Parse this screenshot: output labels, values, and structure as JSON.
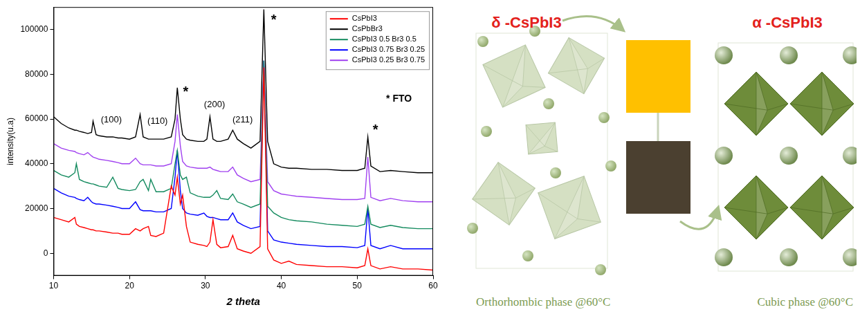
{
  "chart_data": {
    "type": "line",
    "x_label": "2 theta",
    "y_label": "intensity(u.a)",
    "xlim": [
      10,
      60
    ],
    "xticks": [
      10,
      20,
      30,
      40,
      50,
      60
    ],
    "ylim": [
      -10000,
      110000
    ],
    "yticks": [
      0,
      20000,
      40000,
      60000,
      80000,
      100000
    ],
    "grid": false,
    "legend": "upper right",
    "x": [
      10,
      11,
      12,
      12.8,
      13,
      13.4,
      14,
      14.5,
      15,
      15.2,
      15.6,
      16,
      17,
      17.8,
      18.5,
      19,
      20,
      20.8,
      21.4,
      21.8,
      22.5,
      22.8,
      23.5,
      24.5,
      25.5,
      26,
      26.3,
      26.7,
      27,
      27.5,
      28,
      29,
      29.8,
      30.2,
      30.6,
      31,
      31.5,
      32,
      33,
      33.6,
      34.2,
      35,
      36,
      37.2,
      37.7,
      38.2,
      39,
      40,
      41,
      42,
      44,
      46,
      48,
      50,
      51,
      51.4,
      51.8,
      53,
      54.4,
      56,
      58,
      60
    ],
    "series": [
      {
        "name": "CsPbI3",
        "color": "#ff0000",
        "values": [
          16000,
          15000,
          14000,
          16000,
          13000,
          12000,
          11500,
          11000,
          10500,
          10500,
          10000,
          10000,
          9500,
          9000,
          9000,
          8500,
          8500,
          11000,
          10000,
          11000,
          12000,
          8000,
          7500,
          9000,
          30000,
          26000,
          34000,
          22000,
          26000,
          12000,
          5000,
          4000,
          3500,
          3000,
          5000,
          15000,
          4000,
          2500,
          3000,
          8000,
          2000,
          1000,
          0,
          3000,
          83000,
          2000,
          -3000,
          -4500,
          -3500,
          -5000,
          -5500,
          -6000,
          -6000,
          -6500,
          -5500,
          2000,
          -5500,
          -7000,
          -6000,
          -7000,
          -7000,
          -7500
        ]
      },
      {
        "name": "CsPbBr3",
        "color": "#000000",
        "values": [
          61000,
          58000,
          56000,
          55000,
          55000,
          54500,
          54000,
          53500,
          54000,
          59000,
          53000,
          52500,
          52000,
          52000,
          51500,
          51500,
          51000,
          52000,
          62000,
          52000,
          51000,
          51000,
          51000,
          51000,
          52000,
          60000,
          74000,
          60000,
          53000,
          51000,
          50500,
          50000,
          50000,
          51000,
          61000,
          51000,
          50000,
          50000,
          51000,
          55000,
          51000,
          49000,
          47000,
          50000,
          109000,
          50000,
          40000,
          38500,
          38000,
          38000,
          37500,
          37500,
          37000,
          37000,
          38000,
          52000,
          39000,
          36500,
          37000,
          36500,
          36000,
          36000
        ]
      },
      {
        "name": "CsPbI3 0.5 Br3 0.5",
        "color": "#138a5e",
        "values": [
          37000,
          35000,
          34000,
          36000,
          40000,
          33000,
          32000,
          31500,
          31000,
          31000,
          30500,
          30000,
          29500,
          34000,
          29000,
          28500,
          28000,
          28500,
          32000,
          33000,
          28000,
          33000,
          27500,
          27500,
          29000,
          40000,
          46000,
          35000,
          33000,
          34000,
          27000,
          25500,
          25000,
          25000,
          25000,
          26000,
          28000,
          24500,
          24000,
          26500,
          23000,
          22000,
          20500,
          22000,
          86000,
          21000,
          18000,
          16000,
          15000,
          14500,
          14000,
          13000,
          12500,
          12000,
          13000,
          21000,
          13000,
          11500,
          12500,
          11500,
          11000,
          11000
        ]
      },
      {
        "name": "CsPbI3 0.75 Br3 0.25",
        "color": "#0000ff",
        "values": [
          29000,
          27000,
          25500,
          25000,
          24500,
          24000,
          23500,
          25000,
          23000,
          22500,
          22000,
          22000,
          21500,
          21000,
          20500,
          20000,
          20000,
          23000,
          19500,
          19000,
          19000,
          19000,
          18500,
          18500,
          20000,
          34000,
          46000,
          28000,
          20000,
          18000,
          17500,
          17000,
          18000,
          16500,
          16000,
          16000,
          15500,
          15000,
          15000,
          18000,
          14000,
          12500,
          11000,
          12000,
          86000,
          10000,
          6000,
          5000,
          4500,
          4000,
          3500,
          3000,
          3000,
          2500,
          3500,
          20000,
          3500,
          2000,
          3500,
          2000,
          2000,
          2000
        ]
      },
      {
        "name": "CsPbI3 0.25 Br3 0.75",
        "color": "#a040f0",
        "values": [
          49000,
          47000,
          46000,
          45500,
          45000,
          44500,
          44000,
          45000,
          43500,
          43000,
          42500,
          42000,
          41500,
          41000,
          40500,
          40000,
          40000,
          42500,
          40000,
          39500,
          39500,
          39500,
          39000,
          39000,
          40000,
          50000,
          62000,
          48000,
          41000,
          39000,
          38500,
          38000,
          38000,
          38000,
          38500,
          37500,
          37000,
          36500,
          36500,
          38500,
          35000,
          33500,
          32000,
          33000,
          86000,
          32000,
          28000,
          26500,
          26000,
          25500,
          25000,
          24500,
          24000,
          24000,
          24500,
          43000,
          25000,
          23500,
          24500,
          23500,
          23000,
          23000
        ]
      }
    ],
    "annotations": [
      {
        "text": "(100)",
        "x": 17.6,
        "y": 59500
      },
      {
        "text": "(110)",
        "x": 23.7,
        "y": 59000
      },
      {
        "text": "*",
        "x": 27.4,
        "y": 72000
      },
      {
        "text": "(200)",
        "x": 31.2,
        "y": 66500
      },
      {
        "text": "(211)",
        "x": 34.9,
        "y": 59500
      },
      {
        "text": "*",
        "x": 39.0,
        "y": 104000
      },
      {
        "text": "*",
        "x": 52.4,
        "y": 55000
      },
      {
        "text": "* FTO",
        "x": 55.5,
        "y": 69000
      }
    ]
  },
  "diagram": {
    "phases": [
      {
        "label": "δ -CsPbI3",
        "caption": "Orthorhombic phase @60°C",
        "color": "#ffc000"
      },
      {
        "label": "α -CsPbI3",
        "caption": "Cubic phase @60°C",
        "color": "#4b4030"
      }
    ]
  }
}
